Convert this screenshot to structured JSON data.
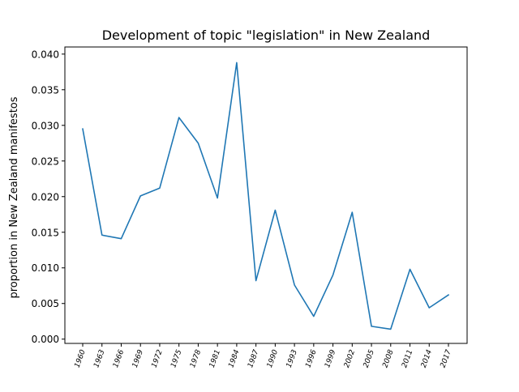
{
  "chart_data": {
    "type": "line",
    "title": "Development of topic \"legislation\" in New Zealand",
    "xlabel": "",
    "ylabel": "proportion in New Zealand manifestos",
    "categories": [
      "1960",
      "1963",
      "1966",
      "1969",
      "1972",
      "1975",
      "1978",
      "1981",
      "1984",
      "1987",
      "1990",
      "1993",
      "1996",
      "1999",
      "2002",
      "2005",
      "2008",
      "2011",
      "2014",
      "2017"
    ],
    "series": [
      {
        "values": [
          0.0295,
          0.0146,
          0.0141,
          0.0201,
          0.0212,
          0.0311,
          0.0275,
          0.0198,
          0.0388,
          0.0082,
          0.0181,
          0.0076,
          0.0032,
          0.009,
          0.0178,
          0.0018,
          0.0014,
          0.0098,
          0.0044,
          0.0062
        ]
      }
    ],
    "ylim": [
      -0.0006,
      0.041
    ],
    "yticks": [
      "0.000",
      "0.005",
      "0.010",
      "0.015",
      "0.020",
      "0.025",
      "0.030",
      "0.035",
      "0.040"
    ],
    "line_color": "#1f77b4",
    "grid": false,
    "xtick_rotation": "70 degrees"
  }
}
